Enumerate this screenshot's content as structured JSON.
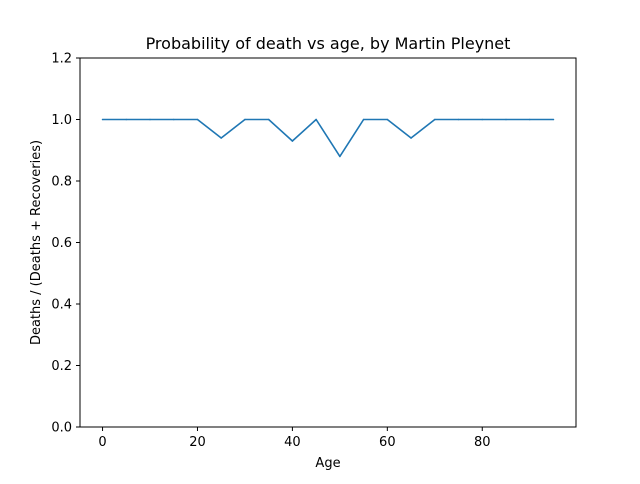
{
  "chart_data": {
    "type": "line",
    "title": "Probability of death vs age, by Martin Pleynet",
    "xlabel": "Age",
    "ylabel": "Deaths / (Deaths + Recoveries)",
    "xlim": [
      -4.75,
      99.75
    ],
    "ylim": [
      0.0,
      1.2
    ],
    "xticks": [
      0,
      20,
      40,
      60,
      80
    ],
    "xtick_labels": [
      "0",
      "20",
      "40",
      "60",
      "80"
    ],
    "yticks": [
      0.0,
      0.2,
      0.4,
      0.6,
      0.8,
      1.0,
      1.2
    ],
    "ytick_labels": [
      "0.0",
      "0.2",
      "0.4",
      "0.6",
      "0.8",
      "1.0",
      "1.2"
    ],
    "grid": false,
    "series": [
      {
        "color": "#1f77b4",
        "x": [
          0,
          5,
          10,
          15,
          20,
          25,
          30,
          35,
          40,
          45,
          50,
          55,
          60,
          65,
          70,
          75,
          80,
          85,
          90,
          95
        ],
        "y": [
          1.0,
          1.0,
          1.0,
          1.0,
          1.0,
          0.94,
          1.0,
          1.0,
          0.93,
          1.0,
          0.88,
          1.0,
          1.0,
          0.94,
          1.0,
          1.0,
          1.0,
          1.0,
          1.0,
          1.0
        ]
      }
    ]
  }
}
